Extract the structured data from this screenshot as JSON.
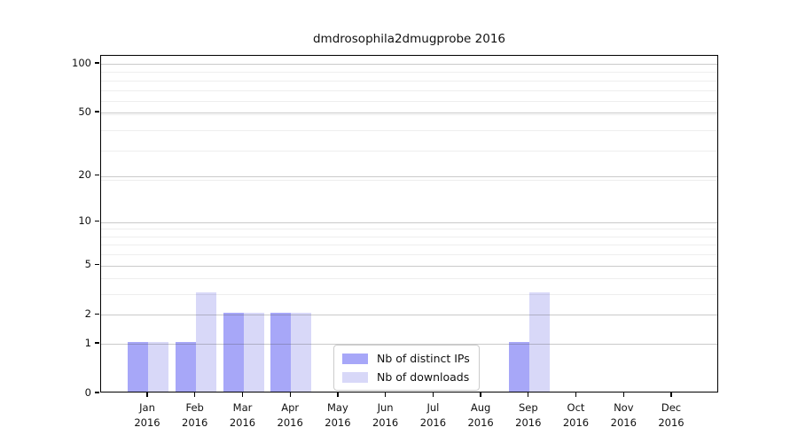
{
  "title": "dmdrosophila2dmugprobe 2016",
  "chart_data": {
    "type": "bar",
    "title": "dmdrosophila2dmugprobe 2016",
    "categories": [
      "Jan 2016",
      "Feb 2016",
      "Mar 2016",
      "Apr 2016",
      "May 2016",
      "Jun 2016",
      "Jul 2016",
      "Aug 2016",
      "Sep 2016",
      "Oct 2016",
      "Nov 2016",
      "Dec 2016"
    ],
    "series": [
      {
        "name": "Nb of distinct IPs",
        "color": "#a7a7f8",
        "values": [
          1,
          1,
          2,
          2,
          0,
          0,
          0,
          0,
          1,
          0,
          0,
          0
        ]
      },
      {
        "name": "Nb of downloads",
        "color": "#d8d8f8",
        "values": [
          1,
          3,
          2,
          2,
          0,
          0,
          0,
          0,
          3,
          0,
          0,
          0
        ]
      }
    ],
    "xlabel": "",
    "ylabel": "",
    "yscale": "log1p",
    "yticks": [
      0,
      1,
      2,
      5,
      10,
      20,
      50,
      100
    ],
    "ylim": [
      0,
      112
    ],
    "grid": "on",
    "grid_on_top": true,
    "legend_position": "lower center"
  },
  "legend": {
    "items": [
      {
        "label": "Nb of distinct IPs",
        "color": "#a7a7f8"
      },
      {
        "label": "Nb of downloads",
        "color": "#d8d8f8"
      }
    ]
  },
  "colors": {
    "bar_dark": "#a7a7f8",
    "bar_light": "#d8d8f8",
    "major_grid": "#c8c8c8",
    "minor_grid": "#efefef",
    "spine": "#000000",
    "background": "#ffffff",
    "text": "#111111"
  }
}
